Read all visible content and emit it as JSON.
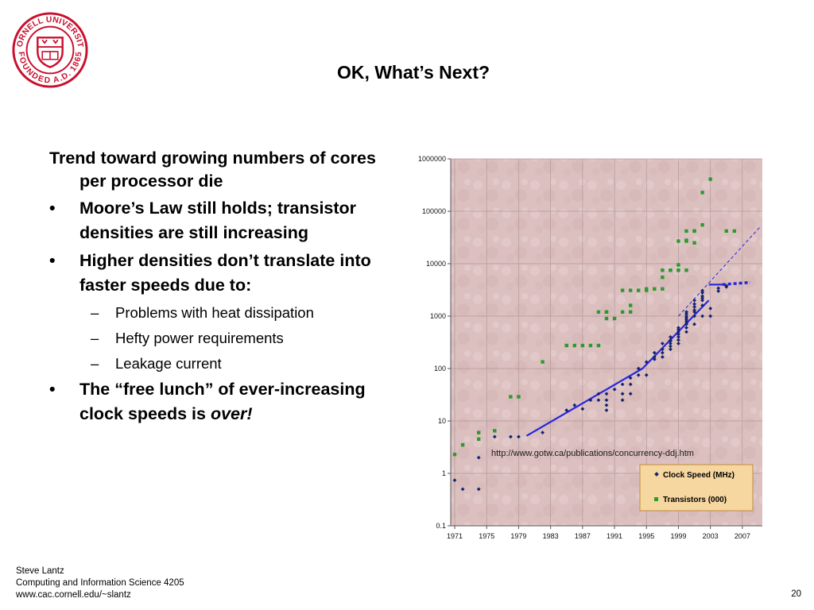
{
  "logo": {
    "university_text": "CORNELL UNIVERSITY",
    "founded_text": "FOUNDED A.D. 1865",
    "icon": "cornell-seal",
    "color": "#c8102e"
  },
  "slide": {
    "title": "OK, What’s Next?",
    "intro": "Trend toward growing numbers of cores per processor die",
    "bullets": [
      {
        "marker": "•",
        "text": "Moore’s Law still holds; transistor densities are still increasing"
      },
      {
        "marker": "•",
        "text": "Higher densities don’t translate into faster speeds due to:"
      },
      {
        "marker": "–",
        "text": "Problems with heat dissipation"
      },
      {
        "marker": "–",
        "text": "Hefty power requirements"
      },
      {
        "marker": "–",
        "text": "Leakage current"
      },
      {
        "marker": "•",
        "text_before": "The “free lunch” of ever-increasing clock speeds is ",
        "text_emph": "over!"
      }
    ]
  },
  "footer": {
    "line1": "Steve Lantz",
    "line2": "Computing and Information Science 4205",
    "line3": "www.cac.cornell.edu/~slantz",
    "page_number": "20"
  },
  "chart_data": {
    "type": "scatter",
    "y_scale": "log",
    "ylim": [
      0.1,
      1000000
    ],
    "xlim": [
      1970.5,
      2009.5
    ],
    "y_ticks": [
      "0.1",
      "1",
      "10",
      "100",
      "1000",
      "10000",
      "100000",
      "1000000"
    ],
    "x_ticks": [
      "1971",
      "1975",
      "1979",
      "1983",
      "1987",
      "1991",
      "1995",
      "1999",
      "2003",
      "2007"
    ],
    "source_url": "http://www.gotw.ca/publications/concurrency-ddj.htm",
    "colors": {
      "clock": "#14246e",
      "transistors": "#2e9a2e",
      "trend": "#2626dd",
      "legend_bg": "#f7d7a0",
      "legend_border": "#c89650"
    },
    "series": [
      {
        "name": "Clock Speed (MHz)",
        "marker": "diamond",
        "points": [
          [
            1971,
            0.74
          ],
          [
            1972,
            0.5
          ],
          [
            1974,
            0.5
          ],
          [
            1974,
            2
          ],
          [
            1976,
            5
          ],
          [
            1978,
            5
          ],
          [
            1979,
            5
          ],
          [
            1982,
            6
          ],
          [
            1985,
            16
          ],
          [
            1986,
            20
          ],
          [
            1987,
            17
          ],
          [
            1988,
            25
          ],
          [
            1989,
            25
          ],
          [
            1989,
            33
          ],
          [
            1990,
            16
          ],
          [
            1990,
            20
          ],
          [
            1990,
            25
          ],
          [
            1990,
            33
          ],
          [
            1991,
            40
          ],
          [
            1992,
            50
          ],
          [
            1992,
            33
          ],
          [
            1992,
            25
          ],
          [
            1993,
            66
          ],
          [
            1993,
            50
          ],
          [
            1993,
            33
          ],
          [
            1994,
            75
          ],
          [
            1994,
            100
          ],
          [
            1995,
            75
          ],
          [
            1995,
            133
          ],
          [
            1996,
            150
          ],
          [
            1996,
            166
          ],
          [
            1996,
            200
          ],
          [
            1997,
            166
          ],
          [
            1997,
            200
          ],
          [
            1997,
            233
          ],
          [
            1997,
            300
          ],
          [
            1998,
            233
          ],
          [
            1998,
            266
          ],
          [
            1998,
            300
          ],
          [
            1998,
            333
          ],
          [
            1998,
            350
          ],
          [
            1998,
            400
          ],
          [
            1999,
            300
          ],
          [
            1999,
            350
          ],
          [
            1999,
            400
          ],
          [
            1999,
            450
          ],
          [
            1999,
            500
          ],
          [
            1999,
            550
          ],
          [
            1999,
            600
          ],
          [
            2000,
            500
          ],
          [
            2000,
            600
          ],
          [
            2000,
            700
          ],
          [
            2000,
            733
          ],
          [
            2000,
            800
          ],
          [
            2000,
            866
          ],
          [
            2000,
            933
          ],
          [
            2000,
            1000
          ],
          [
            2000,
            1100
          ],
          [
            2000,
            1200
          ],
          [
            2001,
            700
          ],
          [
            2001,
            1000
          ],
          [
            2001,
            1200
          ],
          [
            2001,
            1300
          ],
          [
            2001,
            1500
          ],
          [
            2001,
            1700
          ],
          [
            2001,
            2000
          ],
          [
            2002,
            1000
          ],
          [
            2002,
            1600
          ],
          [
            2002,
            2000
          ],
          [
            2002,
            2200
          ],
          [
            2002,
            2400
          ],
          [
            2002,
            2800
          ],
          [
            2002,
            3060
          ],
          [
            2003,
            1000
          ],
          [
            2003,
            1400
          ],
          [
            2004,
            3000
          ],
          [
            2004,
            3400
          ],
          [
            2005,
            3600
          ],
          [
            2005,
            3800
          ]
        ]
      },
      {
        "name": "Transistors (000)",
        "marker": "square",
        "points": [
          [
            1971,
            2.3
          ],
          [
            1972,
            3.5
          ],
          [
            1974,
            6
          ],
          [
            1974,
            4.5
          ],
          [
            1976,
            6.5
          ],
          [
            1978,
            29
          ],
          [
            1979,
            29
          ],
          [
            1982,
            134
          ],
          [
            1985,
            275
          ],
          [
            1986,
            275
          ],
          [
            1987,
            275
          ],
          [
            1988,
            275
          ],
          [
            1989,
            275
          ],
          [
            1989,
            1200
          ],
          [
            1990,
            1200
          ],
          [
            1990,
            900
          ],
          [
            1990,
            1200
          ],
          [
            1991,
            900
          ],
          [
            1992,
            1200
          ],
          [
            1992,
            3100
          ],
          [
            1993,
            1200
          ],
          [
            1993,
            1600
          ],
          [
            1993,
            3100
          ],
          [
            1994,
            3100
          ],
          [
            1995,
            3100
          ],
          [
            1995,
            3300
          ],
          [
            1996,
            3300
          ],
          [
            1997,
            5500
          ],
          [
            1997,
            7500
          ],
          [
            1997,
            3300
          ],
          [
            1998,
            7500
          ],
          [
            1998,
            7500
          ],
          [
            1999,
            7500
          ],
          [
            1999,
            9500
          ],
          [
            1999,
            7500
          ],
          [
            1999,
            27000
          ],
          [
            2000,
            27000
          ],
          [
            2000,
            28000
          ],
          [
            2000,
            42000
          ],
          [
            2000,
            7500
          ],
          [
            2001,
            42000
          ],
          [
            2001,
            25000
          ],
          [
            2001,
            42000
          ],
          [
            2002,
            55000
          ],
          [
            2002,
            228000
          ],
          [
            2003,
            410000
          ],
          [
            2005,
            42000
          ],
          [
            2006,
            42000
          ]
        ]
      }
    ],
    "trend_lines": [
      {
        "kind": "solid",
        "points": [
          [
            1980,
            5.2
          ],
          [
            1994.5,
            100
          ],
          [
            2002.8,
            2000
          ]
        ]
      },
      {
        "kind": "solid",
        "points": [
          [
            2002.8,
            4000
          ],
          [
            2004.5,
            4000
          ]
        ]
      },
      {
        "kind": "dotted",
        "points": [
          [
            2004.5,
            4000
          ],
          [
            2008,
            4400
          ]
        ]
      },
      {
        "kind": "dashed",
        "points": [
          [
            1999,
            1000
          ],
          [
            2009.2,
            50000
          ]
        ]
      }
    ]
  }
}
